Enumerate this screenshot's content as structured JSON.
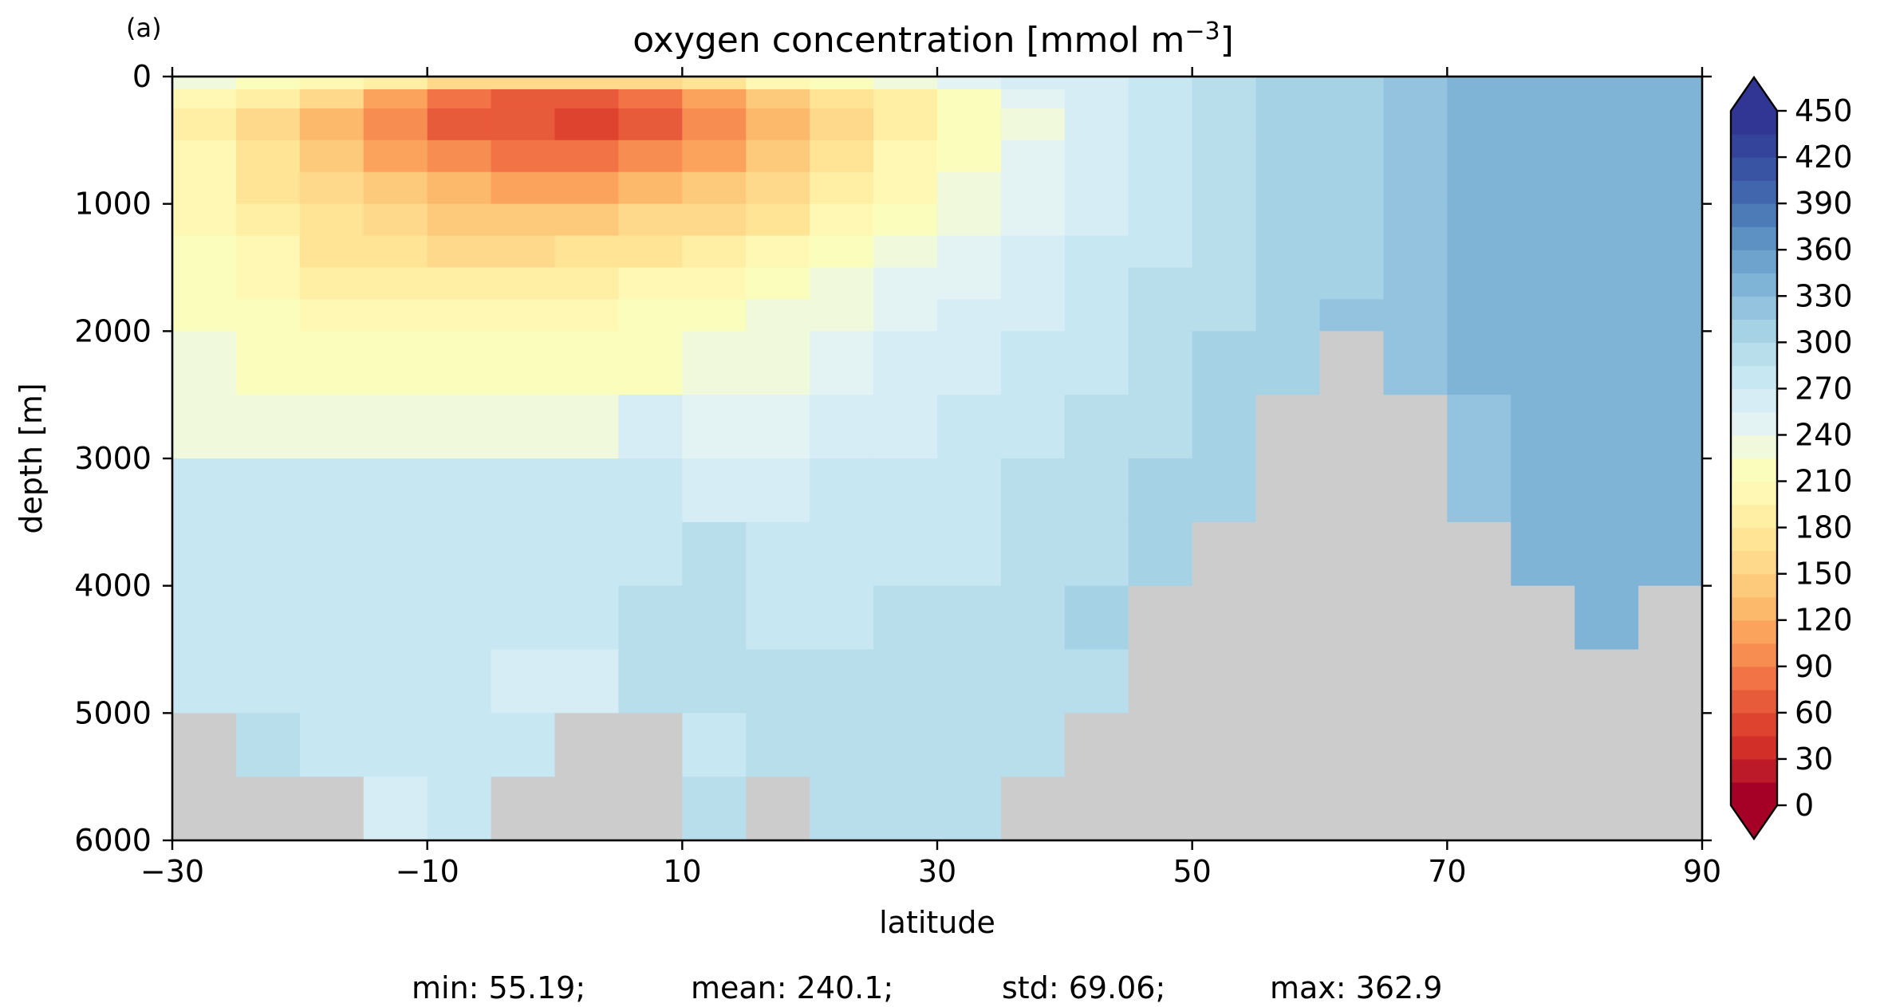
{
  "panel_label": "(a)",
  "chart_data": {
    "type": "heatmap",
    "title": "oxygen concentration [mmol m⁻³]",
    "title_main": "oxygen concentration [mmol m",
    "title_sup": "−3",
    "title_end": "]",
    "xlabel": "latitude",
    "ylabel": "depth [m]",
    "xlim": [
      -30,
      90
    ],
    "ylim": [
      6000,
      0
    ],
    "y_inverted": true,
    "xticks": [
      -30,
      -10,
      10,
      30,
      50,
      70,
      90
    ],
    "xtick_labels": [
      "−30",
      "−10",
      "10",
      "30",
      "50",
      "70",
      "90"
    ],
    "yticks": [
      0,
      1000,
      2000,
      3000,
      4000,
      5000,
      6000
    ],
    "ytick_labels": [
      "0",
      "1000",
      "2000",
      "3000",
      "4000",
      "5000",
      "6000"
    ],
    "colorbar": {
      "levels": [
        0,
        15,
        30,
        45,
        60,
        75,
        90,
        105,
        120,
        135,
        150,
        165,
        180,
        195,
        210,
        225,
        240,
        255,
        270,
        285,
        300,
        315,
        330,
        345,
        360,
        375,
        390,
        405,
        420,
        435,
        450
      ],
      "tick_values": [
        0,
        30,
        60,
        90,
        120,
        150,
        180,
        210,
        240,
        270,
        300,
        330,
        360,
        390,
        420,
        450
      ],
      "tick_labels": [
        "0",
        "30",
        "60",
        "90",
        "120",
        "150",
        "180",
        "210",
        "240",
        "270",
        "300",
        "330",
        "360",
        "390",
        "420",
        "450"
      ],
      "colors": [
        "#a50026",
        "#bc1a28",
        "#d12f28",
        "#de4330",
        "#e85b3a",
        "#f27446",
        "#f88d52",
        "#fba35d",
        "#fdb96b",
        "#fdca7c",
        "#fed98b",
        "#fee494",
        "#ffefa4",
        "#fff8b4",
        "#fafdbc",
        "#f0f9dc",
        "#e3f3f4",
        "#d6edf5",
        "#c7e7f2",
        "#b8ddeb",
        "#a6d2e5",
        "#93c3de",
        "#80b4d6",
        "#6ea3cd",
        "#5d90c3",
        "#4d7bb8",
        "#4166ad",
        "#3a54a4",
        "#34449a",
        "#313695"
      ],
      "extend": "both",
      "under_color": "#a50026",
      "over_color": "#313695"
    },
    "land_color": "#cccccc",
    "field_note": "approximate gridded oxygen values; null = below sea floor",
    "lat_edges": [
      -30,
      -25,
      -20,
      -15,
      -10,
      -5,
      0,
      5,
      10,
      15,
      20,
      25,
      30,
      35,
      40,
      45,
      50,
      55,
      60,
      65,
      70,
      75,
      80,
      85,
      90
    ],
    "depth_edges": [
      0,
      100,
      250,
      500,
      750,
      1000,
      1250,
      1500,
      1750,
      2000,
      2500,
      3000,
      3500,
      4000,
      4500,
      5000,
      5500,
      6000
    ],
    "values": [
      [
        230,
        215,
        200,
        180,
        160,
        150,
        150,
        160,
        175,
        195,
        210,
        225,
        240,
        255,
        265,
        275,
        290,
        300,
        305,
        320,
        330,
        330,
        330,
        330
      ],
      [
        205,
        180,
        150,
        110,
        85,
        70,
        65,
        80,
        105,
        135,
        165,
        190,
        215,
        240,
        258,
        272,
        285,
        300,
        310,
        325,
        330,
        330,
        330,
        330
      ],
      [
        190,
        160,
        125,
        90,
        70,
        60,
        58,
        70,
        95,
        125,
        155,
        185,
        210,
        235,
        255,
        270,
        285,
        300,
        310,
        325,
        330,
        330,
        330,
        330
      ],
      [
        195,
        165,
        135,
        110,
        90,
        80,
        80,
        90,
        110,
        140,
        170,
        195,
        220,
        240,
        258,
        272,
        285,
        300,
        310,
        325,
        330,
        330,
        330,
        330
      ],
      [
        200,
        175,
        150,
        135,
        120,
        115,
        118,
        125,
        140,
        160,
        185,
        205,
        225,
        245,
        262,
        275,
        288,
        300,
        310,
        325,
        330,
        330,
        330,
        330
      ],
      [
        205,
        185,
        165,
        152,
        145,
        142,
        145,
        150,
        160,
        178,
        200,
        218,
        235,
        250,
        265,
        278,
        290,
        300,
        310,
        325,
        330,
        330,
        330,
        330
      ],
      [
        210,
        195,
        178,
        168,
        162,
        162,
        168,
        175,
        185,
        198,
        215,
        230,
        245,
        258,
        270,
        282,
        292,
        300,
        312,
        325,
        330,
        330,
        330,
        330
      ],
      [
        215,
        205,
        192,
        185,
        182,
        182,
        188,
        195,
        205,
        215,
        228,
        240,
        252,
        262,
        274,
        285,
        294,
        302,
        314,
        325,
        330,
        330,
        330,
        330
      ],
      [
        220,
        212,
        205,
        200,
        198,
        198,
        202,
        210,
        218,
        225,
        235,
        248,
        258,
        268,
        278,
        288,
        297,
        305,
        316,
        325,
        330,
        330,
        330,
        330
      ],
      [
        225,
        220,
        218,
        215,
        212,
        212,
        216,
        222,
        230,
        235,
        245,
        255,
        265,
        275,
        283,
        292,
        300,
        310,
        null,
        325,
        330,
        330,
        330,
        330
      ],
      [
        232,
        230,
        228,
        228,
        228,
        232,
        238,
        258,
        250,
        240,
        262,
        265,
        272,
        280,
        290,
        297,
        303,
        null,
        null,
        null,
        328,
        330,
        330,
        330
      ],
      [
        275,
        275,
        275,
        275,
        275,
        275,
        275,
        272,
        265,
        255,
        270,
        272,
        275,
        285,
        293,
        300,
        305,
        null,
        null,
        null,
        328,
        330,
        330,
        330
      ],
      [
        275,
        275,
        275,
        275,
        275,
        275,
        275,
        278,
        290,
        270,
        278,
        272,
        280,
        290,
        296,
        303,
        null,
        null,
        null,
        null,
        null,
        330,
        330,
        330
      ],
      [
        275,
        275,
        275,
        275,
        275,
        275,
        275,
        285,
        295,
        280,
        284,
        285,
        290,
        294,
        300,
        null,
        null,
        null,
        null,
        null,
        null,
        null,
        330,
        null
      ],
      [
        278,
        280,
        280,
        280,
        280,
        265,
        260,
        285,
        292,
        285,
        295,
        295,
        295,
        290,
        295,
        null,
        null,
        null,
        null,
        null,
        null,
        null,
        null,
        null
      ],
      [
        null,
        290,
        280,
        280,
        280,
        280,
        null,
        null,
        278,
        285,
        295,
        295,
        295,
        295,
        null,
        null,
        null,
        null,
        null,
        null,
        null,
        null,
        null,
        null
      ],
      [
        null,
        null,
        null,
        262,
        280,
        null,
        null,
        null,
        290,
        null,
        295,
        295,
        295,
        null,
        null,
        null,
        null,
        null,
        null,
        null,
        null,
        null,
        null,
        null
      ]
    ],
    "stats": [
      {
        "name": "min",
        "value": "55.19"
      },
      {
        "name": "mean",
        "value": "240.1"
      },
      {
        "name": "std",
        "value": "69.06"
      },
      {
        "name": "max",
        "value": "362.9"
      }
    ]
  }
}
